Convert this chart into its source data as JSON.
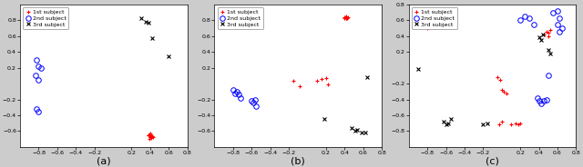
{
  "a": {
    "subject1": {
      "x": [
        0.38,
        0.4,
        0.42,
        0.41,
        0.39,
        0.4,
        0.38,
        0.41,
        0.43,
        0.4,
        0.39,
        0.41
      ],
      "y": [
        -0.65,
        -0.67,
        -0.66,
        -0.68,
        -0.64,
        -0.63,
        -0.65,
        -0.66,
        -0.67,
        -0.65,
        -0.7,
        -0.69
      ]
    },
    "subject2": {
      "x": [
        -0.82,
        -0.8,
        -0.78,
        -0.83,
        -0.8,
        -0.82,
        -0.8
      ],
      "y": [
        0.3,
        0.22,
        0.2,
        0.1,
        0.05,
        -0.32,
        -0.35
      ]
    },
    "subject3": {
      "x": [
        0.3,
        0.35,
        0.38,
        0.42,
        0.6
      ],
      "y": [
        0.82,
        0.78,
        0.77,
        0.57,
        0.35
      ]
    },
    "xlim": [
      -1.0,
      0.8
    ],
    "ylim": [
      -0.8,
      1.0
    ],
    "xticks": [
      -0.8,
      -0.6,
      -0.4,
      -0.2,
      0.2,
      0.4,
      0.6,
      0.8
    ],
    "yticks": [
      -0.6,
      -0.4,
      -0.2,
      0.2,
      0.4,
      0.6,
      0.8
    ],
    "label": "(a)"
  },
  "b": {
    "subject1": {
      "x": [
        0.4,
        0.42,
        0.44,
        0.42,
        0.4,
        0.41,
        0.43,
        0.42,
        -0.15,
        -0.08,
        0.1,
        0.15,
        0.2,
        0.22
      ],
      "y": [
        0.84,
        0.85,
        0.84,
        0.83,
        0.82,
        0.84,
        0.83,
        0.82,
        0.04,
        -0.03,
        0.04,
        0.06,
        0.07,
        -0.01
      ]
    },
    "subject2": {
      "x": [
        -0.8,
        -0.78,
        -0.76,
        -0.74,
        -0.72,
        -0.6,
        -0.58,
        -0.56,
        -0.55
      ],
      "y": [
        -0.08,
        -0.12,
        -0.1,
        -0.14,
        -0.18,
        -0.22,
        -0.24,
        -0.2,
        -0.28
      ]
    },
    "subject3": {
      "x": [
        0.18,
        0.48,
        0.52,
        0.54,
        0.58,
        0.62,
        0.64
      ],
      "y": [
        -0.45,
        -0.56,
        -0.6,
        -0.58,
        -0.62,
        -0.62,
        0.08
      ]
    },
    "xlim": [
      -1.0,
      0.8
    ],
    "ylim": [
      -0.8,
      1.0
    ],
    "xticks": [
      -0.8,
      -0.6,
      -0.4,
      -0.2,
      0.2,
      0.4,
      0.6,
      0.8
    ],
    "yticks": [
      -0.6,
      -0.4,
      -0.2,
      0.2,
      0.4,
      0.6,
      0.8
    ],
    "label": "(b)"
  },
  "c": {
    "subject1": {
      "x": [
        -0.78,
        -0.76,
        -0.8,
        -0.05,
        -0.02,
        0.0,
        0.02,
        0.05,
        0.0,
        -0.03,
        0.1,
        0.15,
        0.18,
        0.2,
        0.45,
        0.48,
        0.5,
        0.52,
        0.5
      ],
      "y": [
        0.52,
        0.55,
        0.5,
        -0.12,
        -0.15,
        -0.28,
        -0.3,
        -0.32,
        -0.68,
        -0.72,
        -0.72,
        -0.7,
        -0.72,
        -0.7,
        0.42,
        0.45,
        0.4,
        0.48,
        0.44
      ]
    },
    "subject2": {
      "x": [
        0.2,
        0.25,
        0.3,
        0.35,
        0.55,
        0.6,
        0.62,
        0.6,
        0.65,
        0.62,
        0.38,
        0.4,
        0.42,
        0.45,
        0.48,
        0.5
      ],
      "y": [
        0.6,
        0.65,
        0.62,
        0.55,
        0.7,
        0.72,
        0.62,
        0.55,
        0.5,
        0.45,
        -0.38,
        -0.42,
        -0.45,
        -0.42,
        -0.4,
        -0.1
      ]
    },
    "subject3": {
      "x": [
        -0.9,
        -0.55,
        -0.58,
        -0.6,
        -0.62,
        -0.2,
        -0.15,
        0.4,
        0.42,
        0.44,
        0.5,
        0.52
      ],
      "y": [
        -0.02,
        -0.65,
        -0.7,
        -0.72,
        -0.68,
        -0.72,
        -0.7,
        0.38,
        0.35,
        0.42,
        0.22,
        0.18
      ]
    },
    "xlim": [
      -1.0,
      0.8
    ],
    "ylim": [
      -1.0,
      0.8
    ],
    "xticks": [
      -0.8,
      -0.6,
      -0.4,
      -0.2,
      0.2,
      0.4,
      0.6,
      0.8
    ],
    "yticks": [
      -0.8,
      -0.6,
      -0.4,
      -0.2,
      0.2,
      0.4,
      0.6,
      0.8
    ],
    "label": "(c)"
  },
  "legend_labels": [
    "1st subject",
    "2nd subject",
    "3rd subject"
  ],
  "colors": [
    "red",
    "blue",
    "black"
  ],
  "markers": [
    "+",
    "o",
    "x"
  ],
  "bg_color": "white",
  "fig_bg": "#cccccc"
}
